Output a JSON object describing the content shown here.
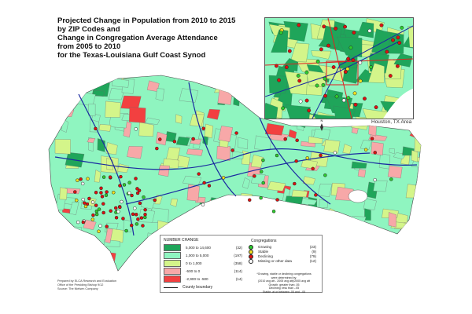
{
  "title": {
    "lines": [
      "Projected Change in Population from 2010 to 2015",
      "by ZIP Codes and",
      "Change in Congregation Average Attendance",
      "from 2005 to 2010",
      "for the Texas-Louisiana Gulf Coast Synod"
    ]
  },
  "inset": {
    "label": "Houston, TX Area"
  },
  "legend": {
    "title": "NUMBER CHANGE",
    "classes": [
      {
        "range": "5,000  to  14,600",
        "count": "(32)",
        "color": "#1fa55a"
      },
      {
        "range": "1,000  to   5,000",
        "count": "(197)",
        "color": "#8ff5c0"
      },
      {
        "range": "0  to   1,000",
        "count": "(358)",
        "color": "#d4f58a"
      },
      {
        "range": "-500  to   0",
        "count": "(114)",
        "color": "#f7a8a8"
      },
      {
        "range": "-2,900  to   -500",
        "count": "(14)",
        "color": "#f24040"
      }
    ],
    "county_boundary": "County boundary",
    "congregations_title": "Congregations",
    "congregations": [
      {
        "label": "Growing",
        "count": "(23)",
        "color": "#2ecc2e"
      },
      {
        "label": "Stable",
        "count": "(9)",
        "color": "#f0e020"
      },
      {
        "label": "Declining",
        "count": "(79)",
        "color": "#dd1111"
      },
      {
        "label": "Missing or other data",
        "count": "(12)",
        "color": "#ffffff"
      }
    ],
    "note": [
      "*Growing, stable or declining congregations",
      "were determined by:",
      "(2010 avg att - 2005 avg att)/2005 avg att",
      "Growth: greater than .05",
      "Declining: less than -.05",
      "Stable: at or between .05 and -.05"
    ]
  },
  "credits": [
    "Prepared by ELCA Research and Evaluation",
    "Office of the Presiding Bishop 9/12",
    "Source: The Nielsen Company"
  ],
  "colors": {
    "highway": "#1a2aa0",
    "interstate": "#e02020",
    "water": "#ffffff"
  }
}
